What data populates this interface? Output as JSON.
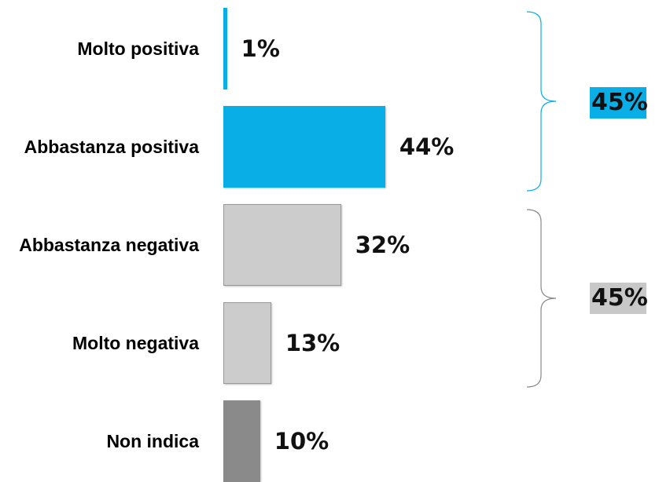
{
  "chart_data": {
    "type": "bar",
    "orientation": "horizontal",
    "categories": [
      "Molto positiva",
      "Abbastanza positiva",
      "Abbastanza negativa",
      "Molto negativa",
      "Non indica"
    ],
    "values": [
      1,
      44,
      32,
      13,
      10
    ],
    "value_labels": [
      "1%",
      "44%",
      "32%",
      "13%",
      "10%"
    ],
    "colors": [
      "#0aaee6",
      "#0aaee6",
      "#cccccc",
      "#cccccc",
      "#8a8a8a"
    ],
    "groups": [
      {
        "value": 45,
        "label": "45%",
        "color": "#0aaee6"
      },
      {
        "value": 45,
        "label": "45%",
        "color": "#c8c8c8"
      }
    ]
  }
}
